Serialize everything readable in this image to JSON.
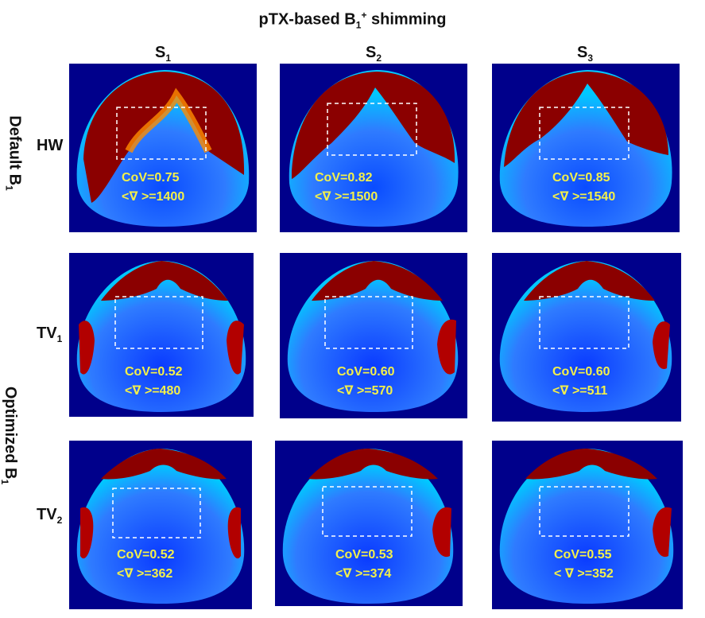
{
  "title": "pTX-based  B",
  "title_sub": "1",
  "title_sup": "+",
  "title_tail": " shimming",
  "columns": [
    {
      "main": "S",
      "sub": "1"
    },
    {
      "main": "S",
      "sub": "2"
    },
    {
      "main": "S",
      "sub": "3"
    }
  ],
  "rows": [
    {
      "main": "HW",
      "sub": ""
    },
    {
      "main": "TV",
      "sub": "1"
    },
    {
      "main": "TV",
      "sub": "2"
    }
  ],
  "side_labels": {
    "default": {
      "main": "Default B",
      "sub": "1"
    },
    "optimized": {
      "main": "Optimized B",
      "sub": "1"
    }
  },
  "panels": [
    {
      "cov": "CoV=0.75",
      "grad": "<∇ >=1400"
    },
    {
      "cov": "CoV=0.82",
      "grad": "<∇ >=1500"
    },
    {
      "cov": "CoV=0.85",
      "grad": "<∇ >=1540"
    },
    {
      "cov": "CoV=0.52",
      "grad": "<∇ >=480"
    },
    {
      "cov": "CoV=0.60",
      "grad": "<∇ >=570"
    },
    {
      "cov": "CoV=0.60",
      "grad": "<∇ >=511"
    },
    {
      "cov": "CoV=0.52",
      "grad": "<∇ >=362"
    },
    {
      "cov": "CoV=0.53",
      "grad": "<∇ >=374"
    },
    {
      "cov": "CoV=0.55",
      "grad": "< ∇ >=352"
    }
  ],
  "colors": {
    "background_dark_blue": "#00008b",
    "hot_red": "#8b0000",
    "stat_text": "#f3f04a"
  }
}
